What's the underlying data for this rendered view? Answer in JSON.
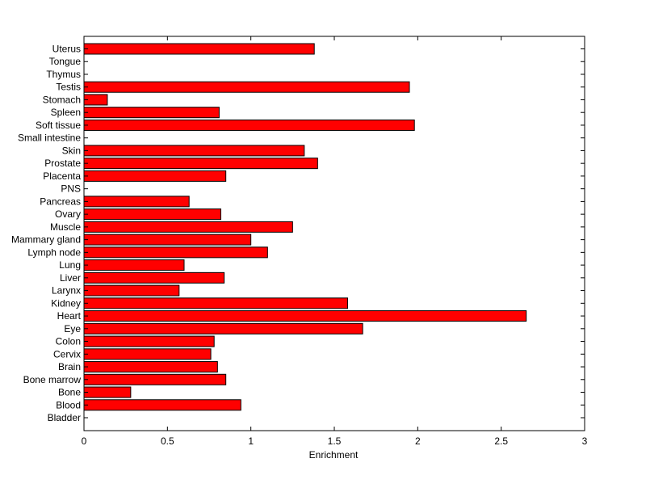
{
  "chart_data": {
    "type": "bar",
    "orientation": "horizontal",
    "title": "",
    "xlabel": "Enrichment",
    "ylabel": "",
    "xlim": [
      0,
      3
    ],
    "xticks": [
      0,
      0.5,
      1,
      1.5,
      2,
      2.5,
      3
    ],
    "xtick_labels": [
      "0",
      "0.5",
      "1",
      "1.5",
      "2",
      "2.5",
      "3"
    ],
    "grid": false,
    "legend": "none",
    "bar_color": "#ff0000",
    "bar_edge_color": "#000000",
    "categories": [
      "Bladder",
      "Blood",
      "Bone",
      "Bone marrow",
      "Brain",
      "Cervix",
      "Colon",
      "Eye",
      "Heart",
      "Kidney",
      "Larynx",
      "Liver",
      "Lung",
      "Lymph node",
      "Mammary gland",
      "Muscle",
      "Ovary",
      "Pancreas",
      "PNS",
      "Placenta",
      "Prostate",
      "Skin",
      "Small intestine",
      "Soft tissue",
      "Spleen",
      "Stomach",
      "Testis",
      "Thymus",
      "Tongue",
      "Uterus"
    ],
    "values": [
      0,
      0.94,
      0.28,
      0.85,
      0.8,
      0.76,
      0.78,
      1.67,
      2.65,
      1.58,
      0.57,
      0.84,
      0.6,
      1.1,
      1.0,
      1.25,
      0.82,
      0.63,
      0,
      0.85,
      1.4,
      1.32,
      0,
      1.98,
      0.81,
      0.14,
      1.95,
      0,
      0,
      1.38
    ]
  }
}
